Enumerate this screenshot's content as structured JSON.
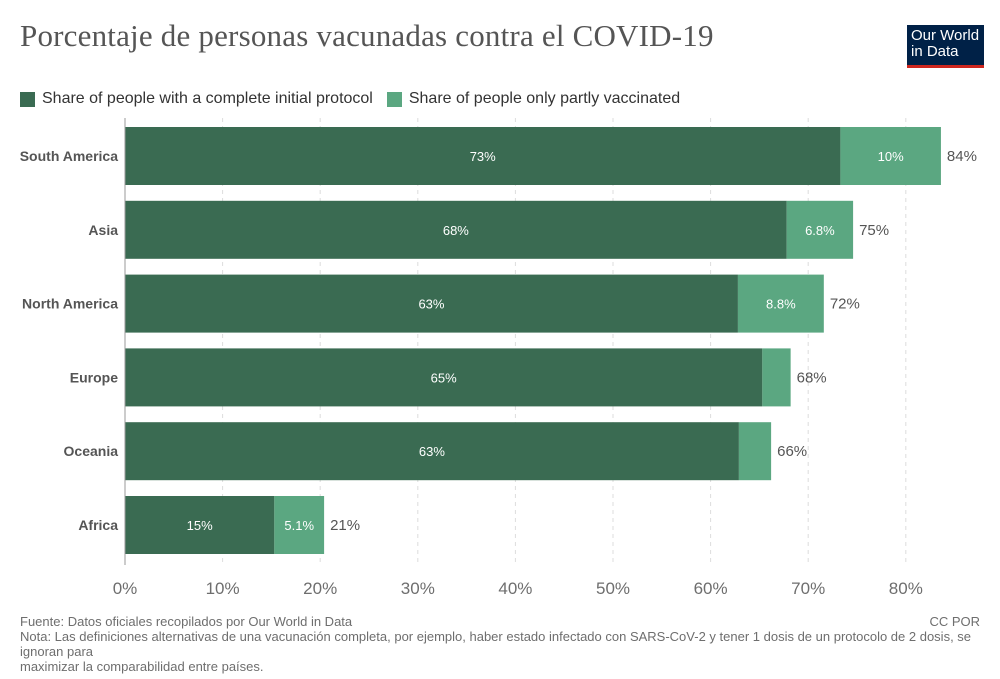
{
  "header": {
    "title": "Porcentaje de personas vacunadas contra el COVID-19",
    "logo_line1": "Our World",
    "logo_line2": "in Data"
  },
  "colors": {
    "full": "#3a6b52",
    "partial": "#5ba781",
    "logo_bg": "#002147",
    "logo_accent": "#ce261e"
  },
  "chart_data": {
    "type": "bar",
    "orientation": "horizontal",
    "stacked": true,
    "categories": [
      "South America",
      "Asia",
      "North America",
      "Europe",
      "Oceania",
      "Africa"
    ],
    "series": [
      {
        "name": "Share of people with a complete initial protocol",
        "values": [
          73.3,
          67.8,
          62.8,
          65.3,
          62.9,
          15.3
        ],
        "labels": [
          "73%",
          "68%",
          "63%",
          "65%",
          "63%",
          "15%"
        ]
      },
      {
        "name": "Share of people only partly vaccinated",
        "values": [
          10.3,
          6.8,
          8.8,
          2.9,
          3.3,
          5.1
        ],
        "labels": [
          "10%",
          "6.8%",
          "8.8%",
          "",
          "",
          "5.1%"
        ]
      }
    ],
    "totals": [
      "84%",
      "75%",
      "72%",
      "68%",
      "66%",
      "21%"
    ],
    "xlim": [
      0,
      80
    ],
    "x_ticks": [
      0,
      10,
      20,
      30,
      40,
      50,
      60,
      70,
      80
    ],
    "x_tick_labels": [
      "0%",
      "10%",
      "20%",
      "30%",
      "40%",
      "50%",
      "60%",
      "70%",
      "80%"
    ],
    "grid": "vertical-dashed",
    "legend_position": "top-left"
  },
  "footer": {
    "source": "Fuente: Datos oficiales recopilados por Our World in Data",
    "license": "CC POR",
    "note_line1": "Nota: Las definiciones alternativas de una vacunación completa, por ejemplo, haber estado infectado con SARS-CoV-2 y tener 1 dosis de un protocolo de 2 dosis, se ignoran para",
    "note_line2": "maximizar la comparabilidad entre países."
  }
}
